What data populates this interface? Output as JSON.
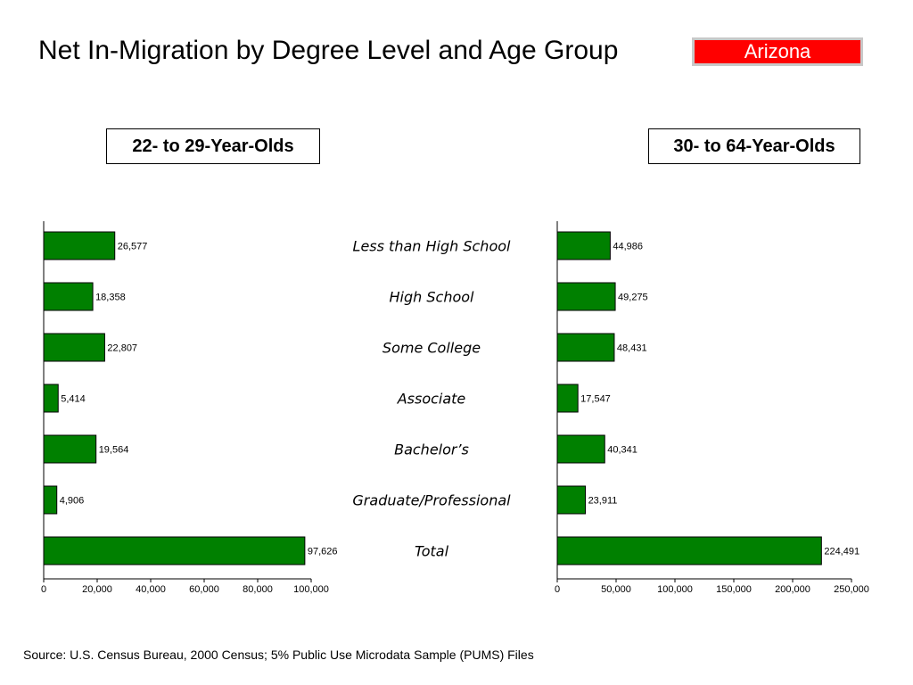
{
  "title": "Net In-Migration by Degree Level and Age Group",
  "state_label": "Arizona",
  "bar_color": "#008000",
  "source": "Source:  U.S. Census Bureau, 2000 Census; 5% Public Use Microdata Sample (PUMS) Files",
  "chart_data": [
    {
      "type": "bar",
      "orientation": "horizontal",
      "title": "22- to 29-Year-Olds",
      "categories": [
        "Less than High School",
        "High School",
        "Some College",
        "Associate",
        "Bachelor’s",
        "Graduate/Professional",
        "Total"
      ],
      "values": [
        26577,
        18358,
        22807,
        5414,
        19564,
        4906,
        97626
      ],
      "value_labels": [
        "26,577",
        "18,358",
        "22,807",
        "5,414",
        "19,564",
        "4,906",
        "97,626"
      ],
      "xlim": [
        0,
        100000
      ],
      "xticks": [
        0,
        20000,
        40000,
        60000,
        80000,
        100000
      ],
      "xtick_labels": [
        "0",
        "20,000",
        "40,000",
        "60,000",
        "80,000",
        "100,000"
      ],
      "grid": false
    },
    {
      "type": "bar",
      "orientation": "horizontal",
      "title": "30- to 64-Year-Olds",
      "categories": [
        "Less than High School",
        "High School",
        "Some College",
        "Associate",
        "Bachelor’s",
        "Graduate/Professional",
        "Total"
      ],
      "values": [
        44986,
        49275,
        48431,
        17547,
        40341,
        23911,
        224491
      ],
      "value_labels": [
        "44,986",
        "49,275",
        "48,431",
        "17,547",
        "40,341",
        "23,911",
        "224,491"
      ],
      "xlim": [
        0,
        250000
      ],
      "xticks": [
        0,
        50000,
        100000,
        150000,
        200000,
        250000
      ],
      "xtick_labels": [
        "0",
        "50,000",
        "100,000",
        "150,000",
        "200,000",
        "250,000"
      ],
      "grid": false
    }
  ]
}
